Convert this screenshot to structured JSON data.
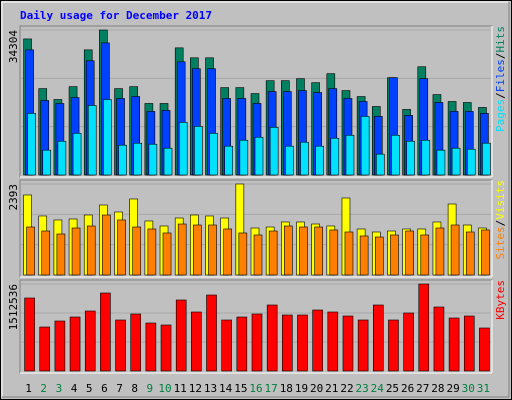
{
  "chart_data": {
    "type": "bar",
    "title": "Daily usage for December 2017",
    "title_color": "#0000ff",
    "legend_separator": "/",
    "categories": [
      "1",
      "2",
      "3",
      "4",
      "5",
      "6",
      "7",
      "8",
      "9",
      "10",
      "11",
      "12",
      "13",
      "14",
      "15",
      "16",
      "17",
      "18",
      "19",
      "20",
      "21",
      "22",
      "23",
      "24",
      "25",
      "26",
      "27",
      "28",
      "29",
      "30",
      "31"
    ],
    "category_colors": [
      "#000000",
      "#008040",
      "#008040",
      "#000000",
      "#000000",
      "#000000",
      "#000000",
      "#000000",
      "#008040",
      "#008040",
      "#000000",
      "#000000",
      "#000000",
      "#000000",
      "#000000",
      "#008040",
      "#008040",
      "#000000",
      "#000000",
      "#000000",
      "#000000",
      "#000000",
      "#008040",
      "#008040",
      "#000000",
      "#000000",
      "#000000",
      "#000000",
      "#000000",
      "#008040",
      "#008040"
    ],
    "panels": [
      {
        "ylim": [
          0,
          34304
        ],
        "yticks": [
          34304
        ],
        "series": [
          {
            "name": "Hits",
            "color": "#008060",
            "values": [
              32190,
              20440,
              17860,
              20910,
              29610,
              34304,
              20440,
              20910,
              16920,
              16920,
              30080,
              27730,
              27730,
              20680,
              20680,
              19270,
              22320,
              22320,
              22790,
              21850,
              23970,
              19970,
              18560,
              16210,
              23030,
              15510,
              25610,
              19030,
              17390,
              17150,
              15980
            ]
          },
          {
            "name": "Files",
            "color": "#0040ff",
            "values": [
              29610,
              17625,
              16920,
              18330,
              27025,
              31255,
              18095,
              18565,
              15040,
              15275,
              26790,
              25145,
              25145,
              18095,
              18095,
              16920,
              19740,
              19740,
              19975,
              19505,
              20445,
              18095,
              17390,
              13865,
              23030,
              14100,
              22795,
              17155,
              15040,
              15040,
              14570
            ]
          },
          {
            "name": "Pages",
            "color": "#00e0ff",
            "values": [
              14570,
              5875,
              7990,
              9870,
              16450,
              17860,
              7050,
              7520,
              7285,
              6345,
              12455,
              11515,
              9870,
              6815,
              8225,
              8930,
              11280,
              6815,
              7755,
              6815,
              8695,
              9400,
              13865,
              4935,
              9400,
              7990,
              8225,
              5875,
              6345,
              6110,
              7520
            ]
          }
        ]
      },
      {
        "ylim": [
          0,
          2393
        ],
        "yticks": [
          2393
        ],
        "series": [
          {
            "name": "Visits",
            "color": "#ffff00",
            "values": [
              2104,
              1552,
              1447,
              1473,
              1578,
              1841,
              1657,
              1999,
              1420,
              1289,
              1499,
              1578,
              1552,
              1499,
              2393,
              1236,
              1262,
              1394,
              1394,
              1341,
              1289,
              2025,
              1210,
              1131,
              1157,
              1210,
              1210,
              1394,
              1867,
              1315,
              1236
            ]
          },
          {
            "name": "Sites",
            "color": "#ff8000",
            "values": [
              1262,
              1157,
              1078,
              1236,
              1289,
              1578,
              1447,
              1262,
              1210,
              1105,
              1341,
              1315,
              1315,
              1210,
              1105,
              1052,
              1157,
              1289,
              1262,
              1262,
              1184,
              1131,
              1026,
              999,
              1052,
              1157,
              1052,
              1236,
              1315,
              1131,
              1184
            ]
          }
        ]
      },
      {
        "ylim": [
          0,
          1512536
        ],
        "yticks": [
          1512536
        ],
        "series": [
          {
            "name": "KBytes",
            "color": "#ff0000",
            "values": [
              1269200,
              765000,
              869300,
              938800,
              1043200,
              1356100,
              886700,
              991000,
              834500,
              799800,
              1234400,
              1025800,
              1321300,
              886700,
              938800,
              991000,
              1147500,
              973600,
              973600,
              1060500,
              1025800,
              956200,
              886700,
              1147500,
              886700,
              1008400,
              1512536,
              1112700,
              921500,
              956200,
              747600
            ]
          }
        ]
      }
    ]
  }
}
